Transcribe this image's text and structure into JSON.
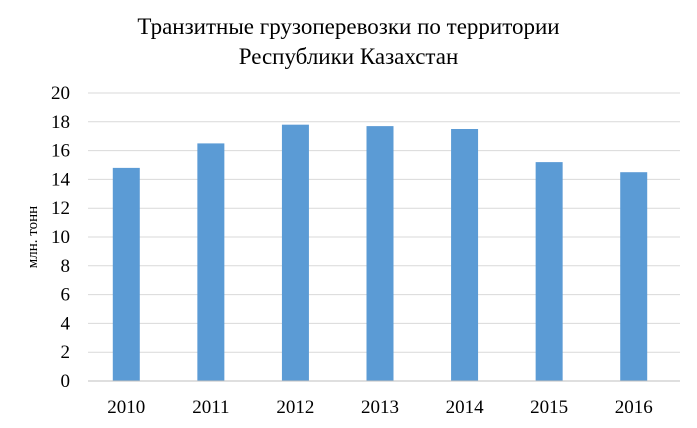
{
  "chart_data": {
    "type": "bar",
    "title_lines": [
      "Транзитные грузоперевозки по территории",
      "Республики Казахстан"
    ],
    "ylabel": "млн. тонн",
    "xlabel": "",
    "categories": [
      "2010",
      "2011",
      "2012",
      "2013",
      "2014",
      "2015",
      "2016"
    ],
    "values": [
      14.8,
      16.5,
      17.8,
      17.7,
      17.5,
      15.2,
      14.5
    ],
    "ylim": [
      0,
      20
    ],
    "yticks": [
      0,
      2,
      4,
      6,
      8,
      10,
      12,
      14,
      16,
      18,
      20
    ],
    "grid": true,
    "legend": "none",
    "bar_color": "#5b9bd5",
    "grid_color": "#d9d9d9"
  }
}
